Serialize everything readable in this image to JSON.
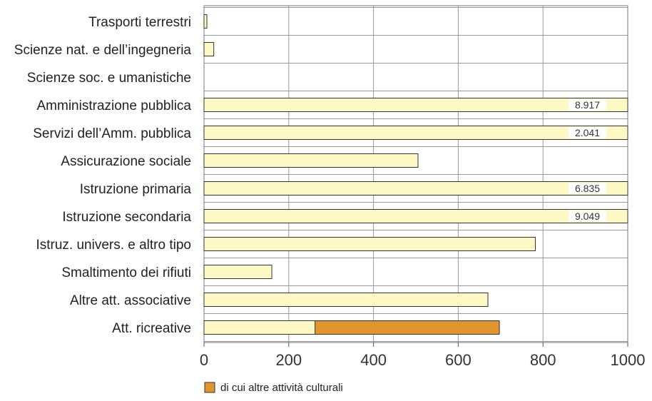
{
  "chart_data": {
    "type": "bar",
    "orientation": "horizontal",
    "categories": [
      "Trasporti terrestri",
      "Scienze nat. e dell’ingegneria",
      "Scienze soc. e umanistiche",
      "Amministrazione pubblica",
      "Servizi dell’Amm. pubblica",
      "Assicurazione sociale",
      "Istruzione primaria",
      "Istruzione secondaria",
      "Istruz. univers. e altro tipo",
      "Smaltimento dei rifiuti",
      "Altre att. associative",
      "Att. ricreative"
    ],
    "values": [
      5,
      23,
      0,
      8917,
      2041,
      505,
      6835,
      9049,
      782,
      160,
      670,
      697
    ],
    "value_labels": [
      "",
      "",
      "",
      "8.917",
      "2.041",
      "",
      "6.835",
      "9.049",
      "",
      "",
      "",
      ""
    ],
    "series": [
      {
        "name": "di cui altre attività culturali",
        "values": [
          0,
          0,
          0,
          0,
          0,
          0,
          0,
          0,
          0,
          0,
          0,
          435
        ],
        "start": [
          0,
          0,
          0,
          0,
          0,
          0,
          0,
          0,
          0,
          0,
          0,
          262
        ]
      }
    ],
    "xlim": [
      0,
      1000
    ],
    "xticks": [
      "0",
      "200",
      "400",
      "600",
      "800",
      "1000"
    ],
    "xtick_values": [
      0,
      200,
      400,
      600,
      800,
      1000
    ],
    "grid": true,
    "legend": {
      "position": "bottom-left",
      "label": "di cui altre attività culturali"
    },
    "colors": {
      "bar_fill": "#fdf8c4",
      "bar_stroke": "#333333",
      "highlight_fill": "#e0952f",
      "grid": "#999999",
      "value_box": "#ffffff"
    }
  }
}
